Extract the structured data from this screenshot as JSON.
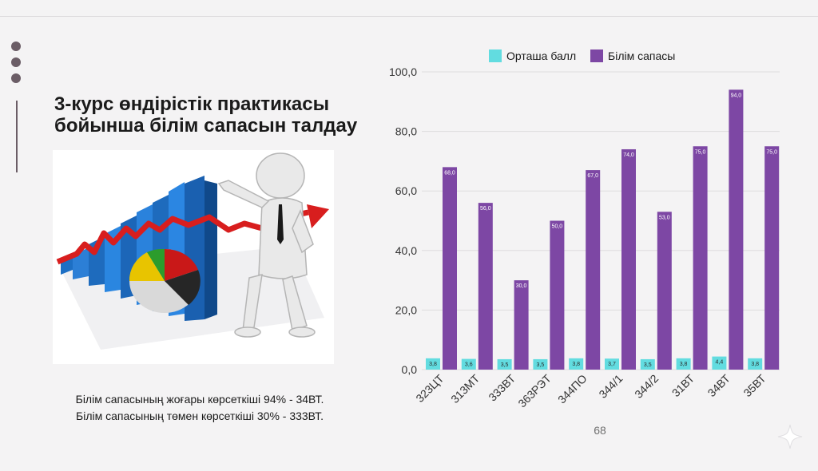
{
  "slide": {
    "title": "3-курс өндірістік практикасы бойынша білім сапасын талдау",
    "caption_lines": [
      "Білім сапасының жоғары көрсеткіші 94% - 34ВТ.",
      "Білім сапасының төмен көрсеткіші 30% - 333ВТ."
    ],
    "page_number": "68"
  },
  "colors": {
    "series1": "#62dce0",
    "series2": "#7d47a4",
    "grid": "#dedcde",
    "accent_dark": "#6b5d66"
  },
  "illustration": {
    "name": "business-growth-chart-figure"
  },
  "chart_data": {
    "type": "bar",
    "categories": [
      "323ЦТ",
      "313МТ",
      "333ВТ",
      "363РЭТ",
      "344ПО",
      "344/1",
      "344/2",
      "31ВТ",
      "34ВТ",
      "35ВТ"
    ],
    "series": [
      {
        "name": "Орташа балл",
        "values": [
          3.8,
          3.6,
          3.5,
          3.5,
          3.8,
          3.7,
          3.5,
          3.8,
          4.4,
          3.8
        ],
        "labels": [
          "3,8",
          "3,6",
          "3,5",
          "3,5",
          "3,8",
          "3,7",
          "3,5",
          "3,8",
          "4,4",
          "3,8"
        ]
      },
      {
        "name": "Білім сапасы",
        "values": [
          68,
          56,
          30,
          50,
          67,
          74,
          53,
          75,
          94,
          75
        ],
        "labels": [
          "68,0",
          "56,0",
          "30,0",
          "50,0",
          "67,0",
          "74,0",
          "53,0",
          "75,0",
          "94,0",
          "75,0"
        ]
      }
    ],
    "ylim": [
      0,
      100
    ],
    "yticks": [
      "0,0",
      "20,0",
      "40,0",
      "60,0",
      "80,0",
      "100,0"
    ],
    "legend": "top",
    "grid": true
  }
}
